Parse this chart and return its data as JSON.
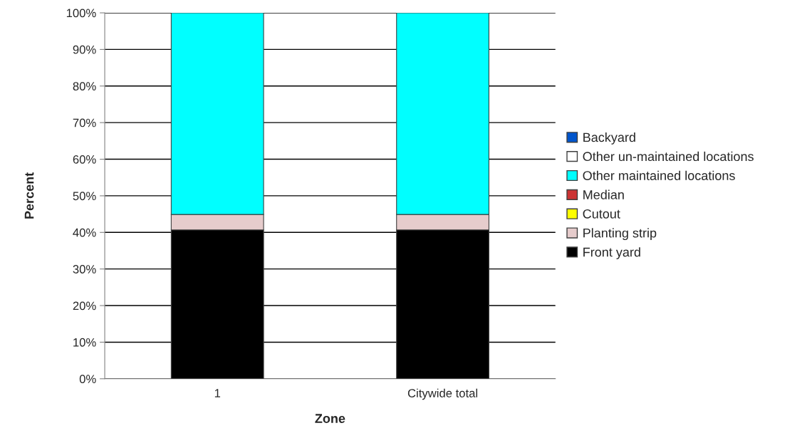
{
  "chart_data": {
    "type": "bar",
    "stacked": true,
    "xlabel": "Zone",
    "ylabel": "Percent",
    "categories": [
      "1",
      "Citywide total"
    ],
    "series": [
      {
        "name": "Front yard",
        "color": "#000000",
        "values": [
          40.7,
          40.7
        ]
      },
      {
        "name": "Planting strip",
        "color": "#e6cccc",
        "values": [
          4.2,
          4.2
        ]
      },
      {
        "name": "Cutout",
        "color": "#ffff00",
        "values": [
          0,
          0
        ]
      },
      {
        "name": "Median",
        "color": "#cc3333",
        "values": [
          0,
          0
        ]
      },
      {
        "name": "Other maintained locations",
        "color": "#00ffff",
        "values": [
          55.1,
          55.1
        ]
      },
      {
        "name": "Other un-maintained locations",
        "color": "#ffffff",
        "values": [
          0,
          0
        ]
      },
      {
        "name": "Backyard",
        "color": "#0055cc",
        "values": [
          0,
          0
        ]
      }
    ],
    "ylim": [
      0,
      100
    ],
    "yticks": [
      {
        "value": 0,
        "label": "0%"
      },
      {
        "value": 10,
        "label": "10%"
      },
      {
        "value": 20,
        "label": "20%"
      },
      {
        "value": 30,
        "label": "30%"
      },
      {
        "value": 40,
        "label": "40%"
      },
      {
        "value": 50,
        "label": "50%"
      },
      {
        "value": 60,
        "label": "60%"
      },
      {
        "value": 70,
        "label": "70%"
      },
      {
        "value": 80,
        "label": "80%"
      },
      {
        "value": 90,
        "label": "90%"
      },
      {
        "value": 100,
        "label": "100%"
      }
    ],
    "grid": "y",
    "legend": "right"
  }
}
